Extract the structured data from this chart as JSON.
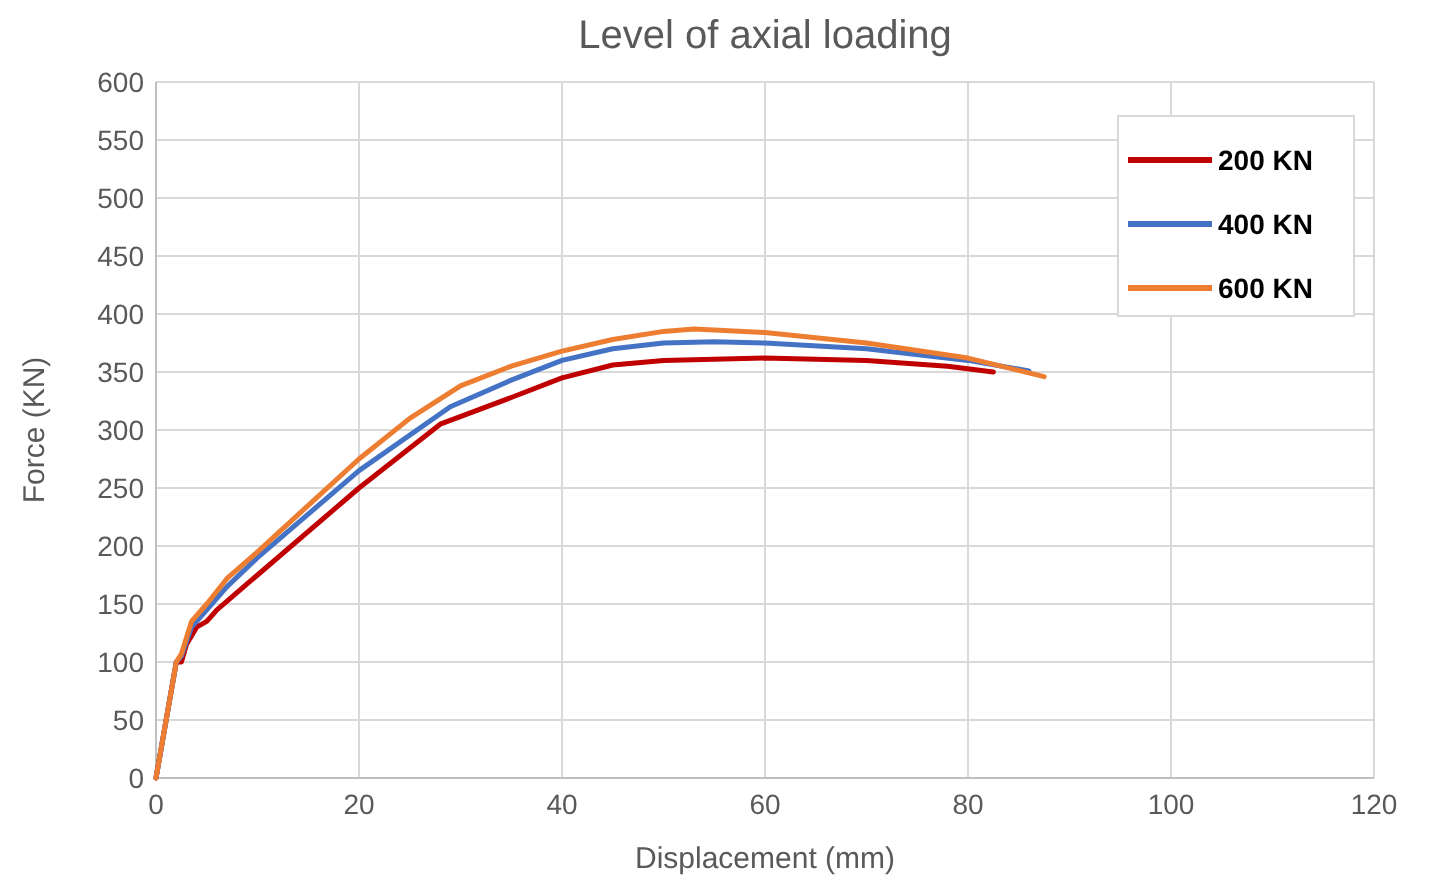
{
  "chart_data": {
    "type": "line",
    "title": "Level of axial loading",
    "xlabel": "Displacement (mm)",
    "ylabel": "Force (KN)",
    "xlim": [
      0,
      120
    ],
    "xticks": [
      0,
      20,
      40,
      60,
      80,
      100,
      120
    ],
    "ylim": [
      0,
      600
    ],
    "yticks": [
      0,
      50,
      100,
      150,
      200,
      250,
      300,
      350,
      400,
      450,
      500,
      550,
      600
    ],
    "grid": true,
    "legend": "top right",
    "line_style": "solid",
    "series": [
      {
        "name": "200 KN",
        "color": "#c00000",
        "x": [
          0,
          2,
          2.5,
          3,
          4,
          5,
          6,
          10,
          20,
          28,
          35,
          40,
          45,
          50,
          60,
          70,
          78,
          82.5
        ],
        "values": [
          0,
          100,
          100,
          115,
          130,
          135,
          145,
          175,
          250,
          305,
          328,
          345,
          356,
          360,
          362,
          360,
          355,
          350
        ]
      },
      {
        "name": "400 KN",
        "color": "#4472c4",
        "x": [
          0,
          2,
          2.5,
          3.5,
          5,
          7,
          10,
          20,
          29,
          35,
          40,
          45,
          50,
          55,
          60,
          70,
          80,
          86
        ],
        "values": [
          0,
          100,
          105,
          130,
          145,
          165,
          190,
          265,
          320,
          343,
          360,
          370,
          375,
          376,
          375,
          370,
          360,
          351
        ]
      },
      {
        "name": "600 KN",
        "color": "#ed7d31",
        "x": [
          0,
          2,
          2.5,
          3.5,
          5,
          7,
          10,
          20,
          25,
          30,
          35,
          40,
          45,
          50,
          53,
          60,
          70,
          80,
          87.5
        ],
        "values": [
          0,
          100,
          107,
          135,
          150,
          172,
          195,
          275,
          310,
          338,
          355,
          368,
          378,
          385,
          387,
          384,
          375,
          362,
          346
        ]
      }
    ]
  }
}
